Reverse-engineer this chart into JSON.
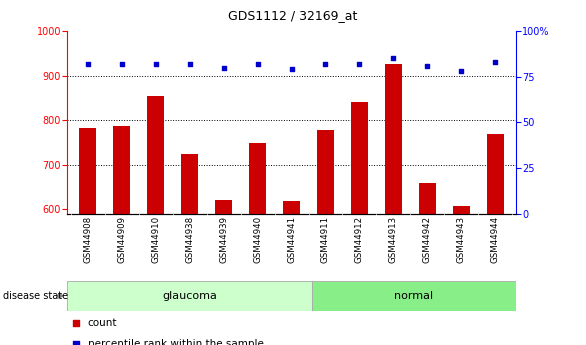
{
  "title": "GDS1112 / 32169_at",
  "samples": [
    "GSM44908",
    "GSM44909",
    "GSM44910",
    "GSM44938",
    "GSM44939",
    "GSM44940",
    "GSM44941",
    "GSM44911",
    "GSM44912",
    "GSM44913",
    "GSM44942",
    "GSM44943",
    "GSM44944"
  ],
  "counts": [
    783,
    787,
    855,
    725,
    622,
    748,
    618,
    778,
    840,
    925,
    660,
    607,
    770
  ],
  "percentiles": [
    82,
    82,
    82,
    82,
    80,
    82,
    79,
    82,
    82,
    85,
    81,
    78,
    83
  ],
  "groups": [
    "glaucoma",
    "glaucoma",
    "glaucoma",
    "glaucoma",
    "glaucoma",
    "glaucoma",
    "glaucoma",
    "normal",
    "normal",
    "normal",
    "normal",
    "normal",
    "normal"
  ],
  "ylim_left": [
    590,
    1000
  ],
  "ylim_right": [
    0,
    100
  ],
  "yticks_left": [
    600,
    700,
    800,
    900,
    1000
  ],
  "yticks_right": [
    0,
    25,
    50,
    75,
    100
  ],
  "bar_color": "#cc0000",
  "dot_color": "#0000cc",
  "glaucoma_color": "#ccffcc",
  "normal_color": "#88ee88",
  "xtick_bg": "#cccccc",
  "bar_width": 0.5
}
